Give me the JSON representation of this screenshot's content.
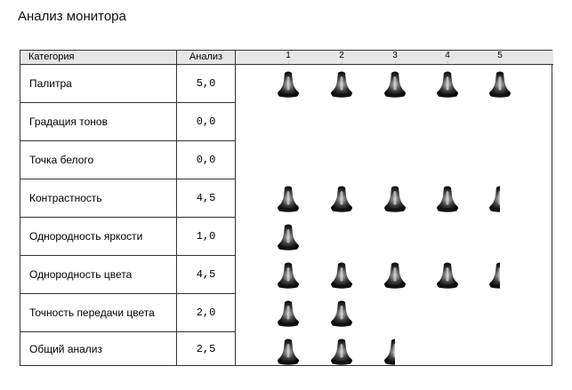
{
  "page": {
    "title": "Анализ монитора"
  },
  "table": {
    "headers": {
      "category": "Категория",
      "analysis": "Анализ"
    },
    "scale": [
      "1",
      "2",
      "3",
      "4",
      "5"
    ],
    "rows": [
      {
        "category": "Палитра",
        "score_text": "5,0",
        "score": 5.0
      },
      {
        "category": "Градация тонов",
        "score_text": "0,0",
        "score": 0.0
      },
      {
        "category": "Точка белого",
        "score_text": "0,0",
        "score": 0.0
      },
      {
        "category": "Контрастность",
        "score_text": "4,5",
        "score": 4.5
      },
      {
        "category": "Однородность яркости",
        "score_text": "1,0",
        "score": 1.0
      },
      {
        "category": "Однородность цвета",
        "score_text": "4,5",
        "score": 4.5
      },
      {
        "category": "Точность передачи цвета",
        "score_text": "2,0",
        "score": 2.0
      },
      {
        "category": "Общий анализ",
        "score_text": "2,5",
        "score": 2.5
      }
    ],
    "rating_icon": "bell-icon"
  }
}
